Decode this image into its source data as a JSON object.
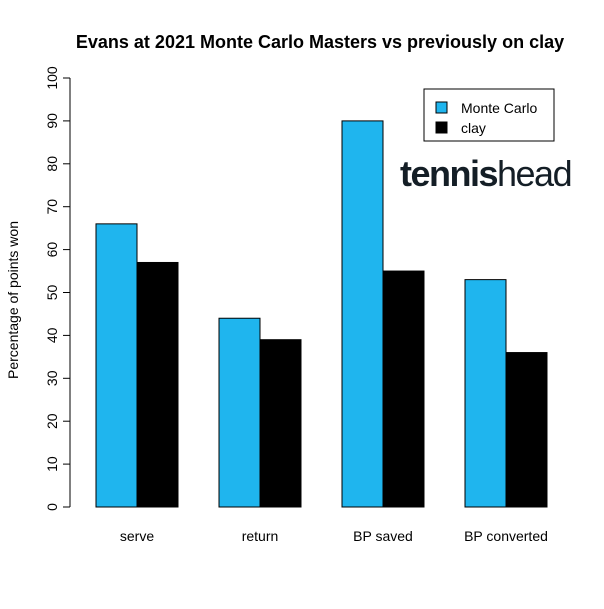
{
  "chart_data": {
    "type": "bar",
    "title": "Evans at 2021 Monte Carlo Masters vs previously on clay",
    "ylabel": "Percentage of points won",
    "xlabel": "",
    "categories": [
      "serve",
      "return",
      "BP saved",
      "BP converted"
    ],
    "series": [
      {
        "name": "Monte Carlo",
        "color": "#1fb5ee",
        "values": [
          66,
          44,
          90,
          53
        ]
      },
      {
        "name": "clay",
        "color": "#000000",
        "values": [
          57,
          39,
          55,
          36
        ]
      }
    ],
    "ylim": [
      0,
      100
    ],
    "yticks": [
      0,
      10,
      20,
      30,
      40,
      50,
      60,
      70,
      80,
      90,
      100
    ],
    "grid": false,
    "legend_position": "top-right"
  },
  "watermark": {
    "text_bold": "tennis",
    "text_light": "head",
    "icon": "tennishead-logo"
  }
}
